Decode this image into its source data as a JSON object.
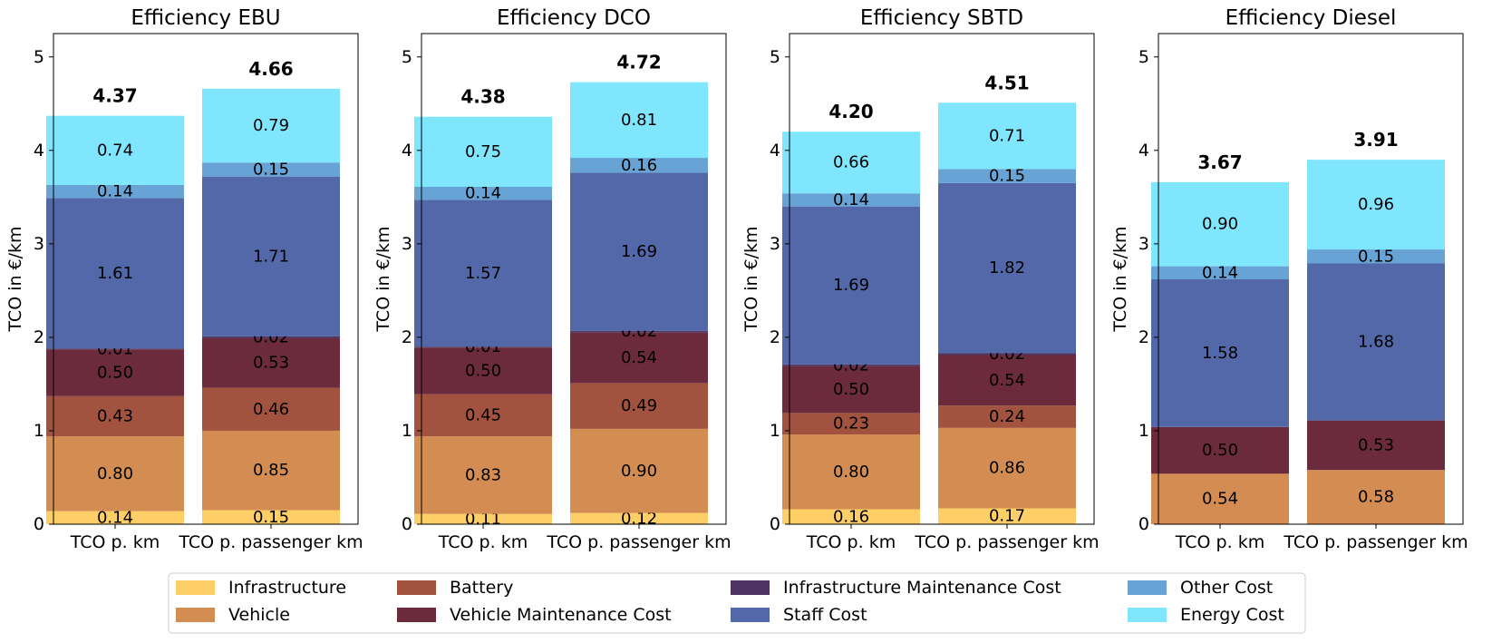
{
  "colors": {
    "Infrastructure": "#fdcf66",
    "Vehicle": "#d38d52",
    "Battery": "#a1533f",
    "Infrastructure Maintenance Cost": "#4e3363",
    "Vehicle Maintenance Cost": "#6b2b3c",
    "Staff Cost": "#5368a8",
    "Other Cost": "#68a3d6",
    "Energy Cost": "#80e6fd"
  },
  "legend": {
    "placement": "bottom-center",
    "entries": [
      "Infrastructure",
      "Vehicle",
      "Battery",
      "Vehicle Maintenance Cost",
      "Infrastructure Maintenance Cost",
      "Staff Cost",
      "Other Cost",
      "Energy Cost"
    ]
  },
  "chart_data": [
    {
      "type": "bar",
      "stacked": true,
      "title": "Efficiency EBU",
      "ylabel": "TCO in €/km",
      "ylim": [
        0,
        5.25
      ],
      "yticks": [
        "0",
        "1",
        "2",
        "3",
        "4",
        "5"
      ],
      "categories": [
        "TCO p. km",
        "TCO p. passenger km"
      ],
      "totals": [
        "4.37",
        "4.66"
      ],
      "series": [
        {
          "name": "Infrastructure",
          "values": [
            0.14,
            0.15
          ],
          "labels": [
            "0.14",
            "0.15"
          ]
        },
        {
          "name": "Vehicle",
          "values": [
            0.8,
            0.85
          ],
          "labels": [
            "0.80",
            "0.85"
          ]
        },
        {
          "name": "Battery",
          "values": [
            0.43,
            0.46
          ],
          "labels": [
            "0.43",
            "0.46"
          ]
        },
        {
          "name": "Vehicle Maintenance Cost",
          "values": [
            0.5,
            0.53
          ],
          "labels": [
            "0.50",
            "0.53"
          ]
        },
        {
          "name": "Infrastructure Maintenance Cost",
          "values": [
            0.01,
            0.02
          ],
          "labels": [
            "0.01",
            "0.02"
          ]
        },
        {
          "name": "Staff Cost",
          "values": [
            1.61,
            1.71
          ],
          "labels": [
            "1.61",
            "1.71"
          ]
        },
        {
          "name": "Other Cost",
          "values": [
            0.14,
            0.15
          ],
          "labels": [
            "0.14",
            "0.15"
          ]
        },
        {
          "name": "Energy Cost",
          "values": [
            0.74,
            0.79
          ],
          "labels": [
            "0.74",
            "0.79"
          ]
        }
      ]
    },
    {
      "type": "bar",
      "stacked": true,
      "title": "Efficiency DCO",
      "ylabel": "TCO in €/km",
      "ylim": [
        0,
        5.25
      ],
      "yticks": [
        "0",
        "1",
        "2",
        "3",
        "4",
        "5"
      ],
      "categories": [
        "TCO p. km",
        "TCO p. passenger km"
      ],
      "totals": [
        "4.38",
        "4.72"
      ],
      "series": [
        {
          "name": "Infrastructure",
          "values": [
            0.11,
            0.12
          ],
          "labels": [
            "0.11",
            "0.12"
          ]
        },
        {
          "name": "Vehicle",
          "values": [
            0.83,
            0.9
          ],
          "labels": [
            "0.83",
            "0.90"
          ]
        },
        {
          "name": "Battery",
          "values": [
            0.45,
            0.49
          ],
          "labels": [
            "0.45",
            "0.49"
          ]
        },
        {
          "name": "Vehicle Maintenance Cost",
          "values": [
            0.5,
            0.54
          ],
          "labels": [
            "0.50",
            "0.54"
          ]
        },
        {
          "name": "Infrastructure Maintenance Cost",
          "values": [
            0.01,
            0.02
          ],
          "labels": [
            "0.01",
            "0.02"
          ]
        },
        {
          "name": "Staff Cost",
          "values": [
            1.57,
            1.69
          ],
          "labels": [
            "1.57",
            "1.69"
          ]
        },
        {
          "name": "Other Cost",
          "values": [
            0.14,
            0.16
          ],
          "labels": [
            "0.14",
            "0.16"
          ]
        },
        {
          "name": "Energy Cost",
          "values": [
            0.75,
            0.81
          ],
          "labels": [
            "0.75",
            "0.81"
          ]
        }
      ]
    },
    {
      "type": "bar",
      "stacked": true,
      "title": "Efficiency SBTD",
      "ylabel": "TCO in €/km",
      "ylim": [
        0,
        5.25
      ],
      "yticks": [
        "0",
        "1",
        "2",
        "3",
        "4",
        "5"
      ],
      "categories": [
        "TCO p. km",
        "TCO p. passenger km"
      ],
      "totals": [
        "4.20",
        "4.51"
      ],
      "series": [
        {
          "name": "Infrastructure",
          "values": [
            0.16,
            0.17
          ],
          "labels": [
            "0.16",
            "0.17"
          ]
        },
        {
          "name": "Vehicle",
          "values": [
            0.8,
            0.86
          ],
          "labels": [
            "0.80",
            "0.86"
          ]
        },
        {
          "name": "Battery",
          "values": [
            0.23,
            0.24
          ],
          "labels": [
            "0.23",
            "0.24"
          ]
        },
        {
          "name": "Vehicle Maintenance Cost",
          "values": [
            0.5,
            0.54
          ],
          "labels": [
            "0.50",
            "0.54"
          ]
        },
        {
          "name": "Infrastructure Maintenance Cost",
          "values": [
            0.02,
            0.02
          ],
          "labels": [
            "0.02",
            "0.02"
          ]
        },
        {
          "name": "Staff Cost",
          "values": [
            1.69,
            1.82
          ],
          "labels": [
            "1.69",
            "1.82"
          ]
        },
        {
          "name": "Other Cost",
          "values": [
            0.14,
            0.15
          ],
          "labels": [
            "0.14",
            "0.15"
          ]
        },
        {
          "name": "Energy Cost",
          "values": [
            0.66,
            0.71
          ],
          "labels": [
            "0.66",
            "0.71"
          ]
        }
      ]
    },
    {
      "type": "bar",
      "stacked": true,
      "title": "Efficiency Diesel",
      "ylabel": "TCO in €/km",
      "ylim": [
        0,
        5.25
      ],
      "yticks": [
        "0",
        "1",
        "2",
        "3",
        "4",
        "5"
      ],
      "categories": [
        "TCO p. km",
        "TCO p. passenger km"
      ],
      "totals": [
        "3.67",
        "3.91"
      ],
      "series": [
        {
          "name": "Vehicle",
          "values": [
            0.54,
            0.58
          ],
          "labels": [
            "0.54",
            "0.58"
          ]
        },
        {
          "name": "Vehicle Maintenance Cost",
          "values": [
            0.5,
            0.53
          ],
          "labels": [
            "0.50",
            "0.53"
          ]
        },
        {
          "name": "Staff Cost",
          "values": [
            1.58,
            1.68
          ],
          "labels": [
            "1.58",
            "1.68"
          ]
        },
        {
          "name": "Other Cost",
          "values": [
            0.14,
            0.15
          ],
          "labels": [
            "0.14",
            "0.15"
          ]
        },
        {
          "name": "Energy Cost",
          "values": [
            0.9,
            0.96
          ],
          "labels": [
            "0.90",
            "0.96"
          ]
        }
      ]
    }
  ]
}
